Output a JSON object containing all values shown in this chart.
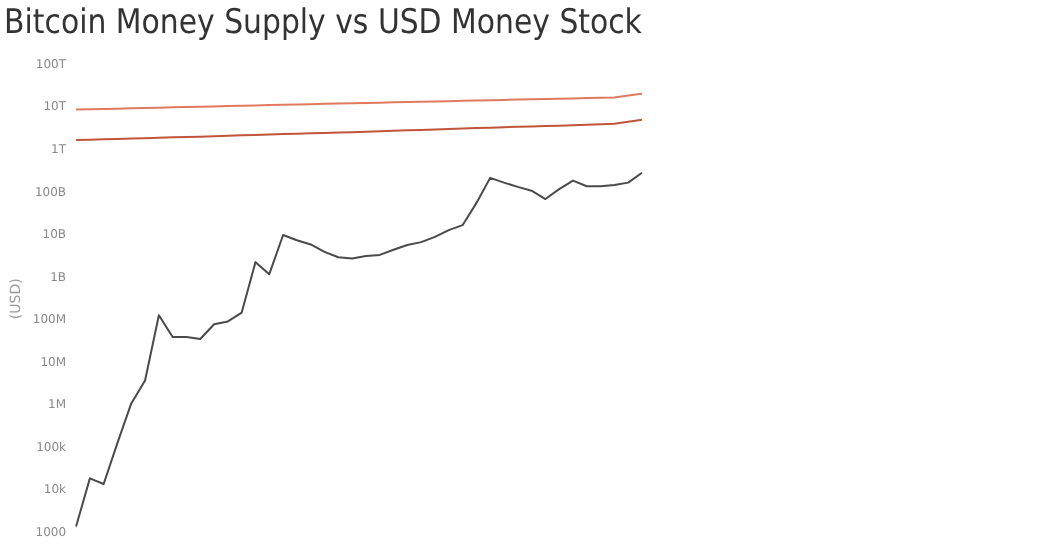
{
  "chart_data": {
    "type": "line",
    "title": "Bitcoin Money Supply vs USD Money Stock",
    "ylabel": "(USD)",
    "categories": [
      null,
      null,
      null,
      null,
      null,
      null,
      null,
      null,
      null,
      null,
      null,
      null,
      null,
      null,
      null,
      null,
      null,
      null,
      null,
      null,
      null,
      null,
      null,
      null,
      null,
      null,
      null,
      null,
      null,
      null,
      null,
      null,
      null,
      null,
      null,
      null,
      null,
      null,
      null,
      null,
      null,
      null
    ],
    "series": [
      {
        "color": "#e07a5f",
        "values": [
          8900000000000.0,
          9000000000000.0,
          9200000000000.0,
          9300000000000.0,
          9500000000000.0,
          9700000000000.0,
          9800000000000.0,
          10000000000000.0,
          10200000000000.0,
          10300000000000.0,
          10500000000000.0,
          10700000000000.0,
          10900000000000.0,
          11100000000000.0,
          11300000000000.0,
          11500000000000.0,
          11700000000000.0,
          11900000000000.0,
          12100000000000.0,
          12300000000000.0,
          12500000000000.0,
          12700000000000.0,
          12900000000000.0,
          13100000000000.0,
          13300000000000.0,
          13500000000000.0,
          13700000000000.0,
          14000000000000.0,
          14200000000000.0,
          14400000000000.0,
          14700000000000.0,
          14900000000000.0,
          15200000000000.0,
          15400000000000.0,
          15700000000000.0,
          16000000000000.0,
          16200000000000.0,
          16500000000000.0,
          16800000000000.0,
          17000000000000.0,
          19000000000000.0,
          21000000000000.0
        ]
      },
      {
        "color": "#c0553a",
        "values": [
          1700000000000.0,
          1740000000000.0,
          1780000000000.0,
          1810000000000.0,
          1850000000000.0,
          1890000000000.0,
          1930000000000.0,
          1970000000000.0,
          2000000000000.0,
          2050000000000.0,
          2100000000000.0,
          2150000000000.0,
          2200000000000.0,
          2250000000000.0,
          2300000000000.0,
          2350000000000.0,
          2400000000000.0,
          2450000000000.0,
          2500000000000.0,
          2550000000000.0,
          2600000000000.0,
          2670000000000.0,
          2740000000000.0,
          2800000000000.0,
          2900000000000.0,
          2950000000000.0,
          3000000000000.0,
          3100000000000.0,
          3200000000000.0,
          3250000000000.0,
          3300000000000.0,
          3400000000000.0,
          3500000000000.0,
          3550000000000.0,
          3650000000000.0,
          3700000000000.0,
          3800000000000.0,
          3900000000000.0,
          4000000000000.0,
          4100000000000.0,
          4600000000000.0,
          5100000000000.0
        ]
      },
      {
        "color": "#4a4a4a",
        "values": [
          1400,
          19000,
          14000,
          130000,
          1100000,
          3800000,
          130000000.0,
          40000000.0,
          40000000.0,
          36000000.0,
          80000000.0,
          93000000.0,
          150000000.0,
          2300000000.0,
          1200000000.0,
          10000000000.0,
          7500000000.0,
          6000000000.0,
          4000000000.0,
          3000000000.0,
          2800000000.0,
          3200000000.0,
          3400000000.0,
          4500000000.0,
          5800000000.0,
          6800000000.0,
          9000000000.0,
          13000000000.0,
          17000000000.0,
          56000000000.0,
          220000000000.0,
          170000000000.0,
          135000000000.0,
          110000000000.0,
          70000000000.0,
          120000000000.0,
          190000000000.0,
          140000000000.0,
          140000000000.0,
          150000000000.0,
          170000000000.0,
          290000000000.0
        ]
      }
    ],
    "log": "y",
    "ylim": [
      1000,
      100000000000000.0
    ],
    "yticks": [
      {
        "value": 100000000000000.0,
        "label": "100T"
      },
      {
        "value": 10000000000000.0,
        "label": "10T"
      },
      {
        "value": 1000000000000.0,
        "label": "1T"
      },
      {
        "value": 100000000000.0,
        "label": "100B"
      },
      {
        "value": 10000000000.0,
        "label": "10B"
      },
      {
        "value": 1000000000.0,
        "label": "1B"
      },
      {
        "value": 100000000.0,
        "label": "100M"
      },
      {
        "value": 10000000.0,
        "label": "10M"
      },
      {
        "value": 1000000.0,
        "label": "1M"
      },
      {
        "value": 100000.0,
        "label": "100k"
      },
      {
        "value": 10000.0,
        "label": "10k"
      },
      {
        "value": 1000,
        "label": "1000"
      }
    ],
    "grid": false,
    "legend": false,
    "tick_labels": "y",
    "marker": "none",
    "line_style": "solid"
  }
}
